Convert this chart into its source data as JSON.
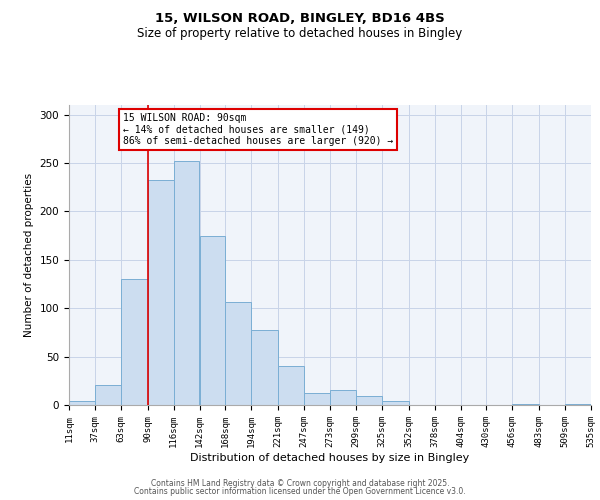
{
  "title": "15, WILSON ROAD, BINGLEY, BD16 4BS",
  "subtitle": "Size of property relative to detached houses in Bingley",
  "xlabel": "Distribution of detached houses by size in Bingley",
  "ylabel": "Number of detached properties",
  "bar_color": "#ccddf0",
  "bar_edge_color": "#7aaed4",
  "background_color": "#f0f4fa",
  "grid_color": "#c8d4e8",
  "vline_x": 90,
  "vline_color": "#dd0000",
  "annotation_text": "15 WILSON ROAD: 90sqm\n← 14% of detached houses are smaller (149)\n86% of semi-detached houses are larger (920) →",
  "annotation_box_color": "#ffffff",
  "annotation_box_edge_color": "#dd0000",
  "bins": [
    11,
    37,
    63,
    90,
    116,
    142,
    168,
    194,
    221,
    247,
    273,
    299,
    325,
    352,
    378,
    404,
    430,
    456,
    483,
    509,
    535
  ],
  "counts": [
    4,
    21,
    130,
    233,
    252,
    175,
    106,
    77,
    40,
    12,
    16,
    9,
    4,
    0,
    0,
    0,
    0,
    1,
    0,
    1
  ],
  "ylim": [
    0,
    310
  ],
  "yticks": [
    0,
    50,
    100,
    150,
    200,
    250,
    300
  ],
  "tick_labels": [
    "11sqm",
    "37sqm",
    "63sqm",
    "90sqm",
    "116sqm",
    "142sqm",
    "168sqm",
    "194sqm",
    "221sqm",
    "247sqm",
    "273sqm",
    "299sqm",
    "325sqm",
    "352sqm",
    "378sqm",
    "404sqm",
    "430sqm",
    "456sqm",
    "483sqm",
    "509sqm",
    "535sqm"
  ],
  "footer_line1": "Contains HM Land Registry data © Crown copyright and database right 2025.",
  "footer_line2": "Contains public sector information licensed under the Open Government Licence v3.0."
}
